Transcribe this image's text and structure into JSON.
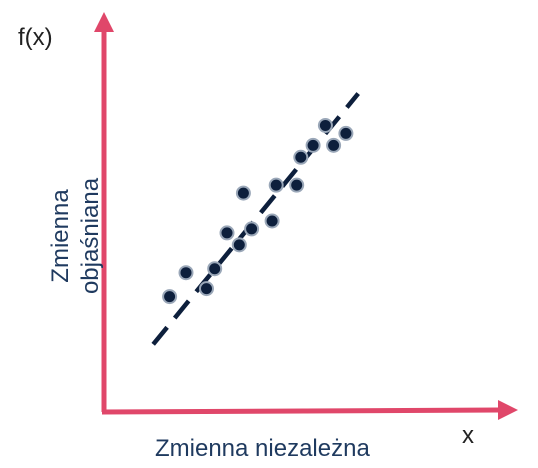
{
  "chart_data": {
    "type": "scatter",
    "title": "",
    "y_axis_symbol": "f(x)",
    "x_axis_symbol": "x",
    "xlabel": "Zmienna niezależna",
    "ylabel_lines": [
      "Zmienna",
      "objaśniana"
    ],
    "xlim": [
      0,
      100
    ],
    "ylim": [
      0,
      100
    ],
    "grid": false,
    "ticks": false,
    "series": [
      {
        "points": [
          [
            16,
            29
          ],
          [
            20,
            35
          ],
          [
            25,
            31
          ],
          [
            27,
            36
          ],
          [
            30,
            45
          ],
          [
            33,
            42
          ],
          [
            34,
            55
          ],
          [
            36,
            46
          ],
          [
            41,
            48
          ],
          [
            42,
            57
          ],
          [
            47,
            57
          ],
          [
            48,
            64
          ],
          [
            51,
            67
          ],
          [
            54,
            72
          ],
          [
            56,
            67
          ],
          [
            59,
            70
          ]
        ]
      }
    ],
    "trendline": {
      "style": "dashed",
      "from": [
        12,
        17
      ],
      "to": [
        62,
        80
      ]
    },
    "colors": {
      "axis": "#e0476a",
      "points": "#0d1f3c",
      "point_outline": "#9aa7b8",
      "trendline": "#0d1f3c",
      "axis_title": "#1f3a5f"
    }
  }
}
